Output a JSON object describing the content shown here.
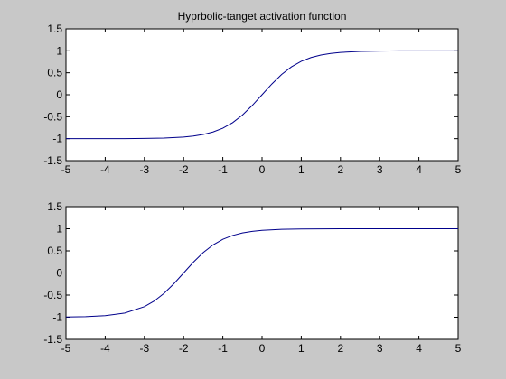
{
  "chart_data": [
    {
      "type": "line",
      "title": "Hyprbolic-tanget activation function",
      "xlabel": "",
      "ylabel": "",
      "xlim": [
        -5,
        5
      ],
      "ylim": [
        -1.5,
        1.5
      ],
      "xticks": [
        -5,
        -4,
        -3,
        -2,
        -1,
        0,
        1,
        2,
        3,
        4,
        5
      ],
      "yticks": [
        -1.5,
        -1,
        -0.5,
        0,
        0.5,
        1,
        1.5
      ],
      "xtick_labels": [
        "-5",
        "-4",
        "-3",
        "-2",
        "-1",
        "0",
        "1",
        "2",
        "3",
        "4",
        "5"
      ],
      "ytick_labels": [
        "-1.5",
        "-1",
        "-0.5",
        "0",
        "0.5",
        "1",
        "1.5"
      ],
      "grid": false,
      "series": [
        {
          "color": "#00008b",
          "x": [
            -5,
            -4.5,
            -4,
            -3.5,
            -3,
            -2.5,
            -2,
            -1.75,
            -1.5,
            -1.25,
            -1,
            -0.75,
            -0.5,
            -0.25,
            0,
            0.25,
            0.5,
            0.75,
            1,
            1.25,
            1.5,
            1.75,
            2,
            2.5,
            3,
            3.5,
            4,
            4.5,
            5
          ],
          "y": [
            -1.0,
            -1.0,
            -1.0,
            -0.998,
            -0.995,
            -0.987,
            -0.964,
            -0.941,
            -0.905,
            -0.848,
            -0.762,
            -0.635,
            -0.462,
            -0.245,
            0.0,
            0.245,
            0.462,
            0.635,
            0.762,
            0.848,
            0.905,
            0.941,
            0.964,
            0.987,
            0.995,
            0.998,
            1.0,
            1.0,
            1.0
          ]
        }
      ]
    },
    {
      "type": "line",
      "title": "",
      "xlabel": "",
      "ylabel": "",
      "xlim": [
        -5,
        5
      ],
      "ylim": [
        -1.5,
        1.5
      ],
      "xticks": [
        -5,
        -4,
        -3,
        -2,
        -1,
        0,
        1,
        2,
        3,
        4,
        5
      ],
      "yticks": [
        -1.5,
        -1,
        -0.5,
        0,
        0.5,
        1,
        1.5
      ],
      "xtick_labels": [
        "-5",
        "-4",
        "-3",
        "-2",
        "-1",
        "0",
        "1",
        "2",
        "3",
        "4",
        "5"
      ],
      "ytick_labels": [
        "-1.5",
        "-1",
        "-0.5",
        "0",
        "0.5",
        "1",
        "1.5"
      ],
      "grid": false,
      "series": [
        {
          "color": "#00008b",
          "x": [
            -5,
            -4.5,
            -4,
            -3.5,
            -3,
            -2.75,
            -2.5,
            -2.25,
            -2,
            -1.75,
            -1.5,
            -1.25,
            -1,
            -0.75,
            -0.5,
            -0.25,
            0,
            0.5,
            1,
            1.5,
            2,
            2.5,
            3,
            3.5,
            4,
            4.5,
            5
          ],
          "y": [
            -0.995,
            -0.987,
            -0.964,
            -0.905,
            -0.762,
            -0.635,
            -0.462,
            -0.245,
            0.0,
            0.245,
            0.462,
            0.635,
            0.762,
            0.848,
            0.905,
            0.941,
            0.964,
            0.987,
            0.995,
            0.998,
            1.0,
            1.0,
            1.0,
            1.0,
            1.0,
            1.0,
            1.0
          ]
        }
      ]
    }
  ]
}
